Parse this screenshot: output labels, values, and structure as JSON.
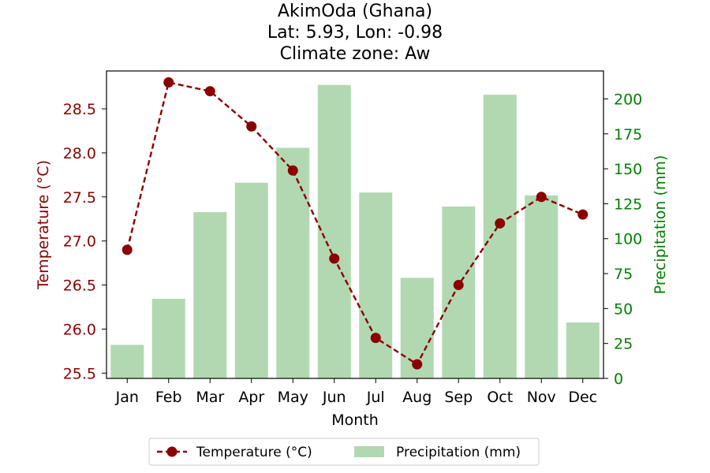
{
  "chart_data": {
    "type": "bar+line",
    "title_lines": [
      "AkimOda (Ghana)",
      "Lat: 5.93, Lon: -0.98",
      "Climate zone: Aw"
    ],
    "xlabel": "Month",
    "categories": [
      "Jan",
      "Feb",
      "Mar",
      "Apr",
      "May",
      "Jun",
      "Jul",
      "Aug",
      "Sep",
      "Oct",
      "Nov",
      "Dec"
    ],
    "series": [
      {
        "name": "Temperature (°C)",
        "type": "line",
        "axis": "left",
        "color": "#8b0000",
        "values": [
          26.9,
          28.8,
          28.7,
          28.3,
          27.8,
          26.8,
          25.9,
          25.6,
          26.5,
          27.2,
          27.5,
          27.3
        ]
      },
      {
        "name": "Precipitation (mm)",
        "type": "bar",
        "axis": "right",
        "color": "#b2d8b2",
        "values": [
          24,
          57,
          119,
          140,
          165,
          210,
          133,
          72,
          123,
          203,
          131,
          40
        ]
      }
    ],
    "y_left": {
      "label": "Temperature (°C)",
      "ticks": [
        "25.5",
        "26.0",
        "26.5",
        "27.0",
        "27.5",
        "28.0",
        "28.5"
      ],
      "range": [
        25.44,
        28.93
      ],
      "color": "#8b0000"
    },
    "y_right": {
      "label": "Precipitation (mm)",
      "ticks": [
        "0",
        "25",
        "50",
        "75",
        "100",
        "125",
        "150",
        "175",
        "200"
      ],
      "range": [
        0,
        220
      ],
      "color": "#008000"
    },
    "grid": false,
    "legend": {
      "placement": "bottom-center",
      "items": [
        "Temperature (°C)",
        "Precipitation (mm)"
      ]
    }
  }
}
